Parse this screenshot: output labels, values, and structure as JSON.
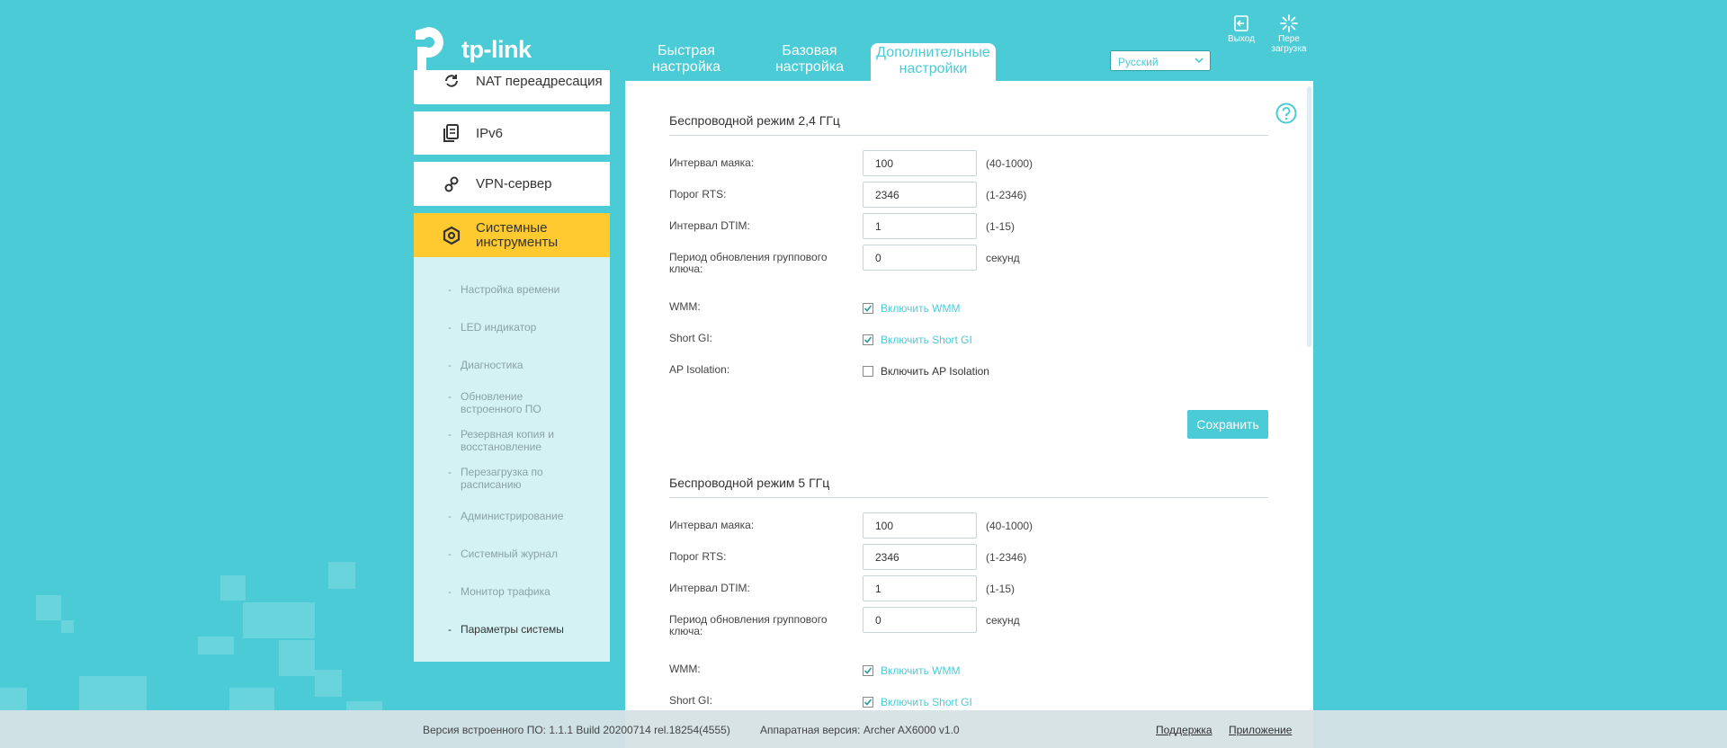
{
  "brand": {
    "logo_text": "tp-link",
    "accent": "#4acbd6",
    "highlight": "#ffca30"
  },
  "nav": {
    "tabs": [
      {
        "label": "Быстрая настройка",
        "line1": "Быстрая",
        "line2": "настройка"
      },
      {
        "label": "Базовая настройка",
        "line1": "Базовая",
        "line2": "настройка"
      },
      {
        "label": "Дополнительные настройки",
        "line1": "Дополнительные",
        "line2": "настройки",
        "active": true
      }
    ],
    "language": "Русский",
    "logout_label": "Выход",
    "reboot_label_1": "Пере",
    "reboot_label_2": "загрузка"
  },
  "sidebar": {
    "items": [
      {
        "label": "NAT переадресация",
        "icon": "nat-icon"
      },
      {
        "label": "IPv6",
        "icon": "ipv6-icon"
      },
      {
        "label": "VPN-сервер",
        "icon": "vpn-icon"
      },
      {
        "label_1": "Системные",
        "label_2": "инструменты",
        "icon": "gear-icon",
        "active": true
      }
    ],
    "sub_items": [
      {
        "l1": "Настройка времени"
      },
      {
        "l1": "LED индикатор"
      },
      {
        "l1": "Диагностика"
      },
      {
        "l1": "Обновление",
        "l2": "встроенного ПО"
      },
      {
        "l1": "Резервная копия и",
        "l2": "восстановление"
      },
      {
        "l1": "Перезагрузка по",
        "l2": "расписанию"
      },
      {
        "l1": "Администрирование"
      },
      {
        "l1": "Системный журнал"
      },
      {
        "l1": "Монитор трафика"
      },
      {
        "l1": "Параметры системы",
        "current": true
      }
    ],
    "dash": "-"
  },
  "sections": [
    {
      "title": "Беспроводной режим 2,4 ГГц",
      "beacon_label": "Интервал маяка:",
      "beacon_value": "100",
      "beacon_hint": "(40-1000)",
      "rts_label": "Порог RTS:",
      "rts_value": "2346",
      "rts_hint": "(1-2346)",
      "dtim_label": "Интервал DTIM:",
      "dtim_value": "1",
      "dtim_hint": "(1-15)",
      "gk_label_1": "Период обновления группового",
      "gk_label_2": "ключа:",
      "gk_value": "0",
      "gk_hint": "секунд",
      "wmm_label": "WMM:",
      "wmm_check": "Включить WMM",
      "wmm_on": true,
      "sgi_label": "Short GI:",
      "sgi_check": "Включить Short GI",
      "sgi_on": true,
      "ap_label": "AP Isolation:",
      "ap_check": "Включить AP Isolation",
      "ap_on": false,
      "save_label": "Сохранить"
    },
    {
      "title": "Беспроводной режим 5 ГГц",
      "beacon_label": "Интервал маяка:",
      "beacon_value": "100",
      "beacon_hint": "(40-1000)",
      "rts_label": "Порог RTS:",
      "rts_value": "2346",
      "rts_hint": "(1-2346)",
      "dtim_label": "Интервал DTIM:",
      "dtim_value": "1",
      "dtim_hint": "(1-15)",
      "gk_label_1": "Период обновления группового",
      "gk_label_2": "ключа:",
      "gk_value": "0",
      "gk_hint": "секунд",
      "wmm_label": "WMM:",
      "wmm_check": "Включить WMM",
      "wmm_on": true,
      "sgi_label": "Short GI:",
      "sgi_check": "Включить Short GI",
      "sgi_on": true
    }
  ],
  "footer": {
    "firmware": "Версия встроенного ПО: 1.1.1 Build 20200714 rel.18254(4555)",
    "hardware": "Аппаратная версия: Archer AX6000 v1.0",
    "support": "Поддержка",
    "app": "Приложение"
  }
}
